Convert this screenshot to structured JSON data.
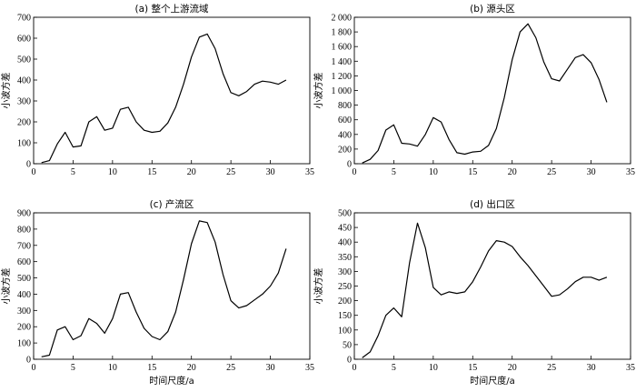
{
  "chart_data": [
    {
      "type": "line",
      "title": "(a) 整个上游流域",
      "xlabel": "",
      "ylabel": "小波方差",
      "xlim": [
        0,
        35
      ],
      "ylim": [
        0,
        700
      ],
      "xticks": [
        "0",
        "5",
        "10",
        "15",
        "20",
        "25",
        "30",
        "35"
      ],
      "yticks": [
        "0",
        "100",
        "200",
        "300",
        "400",
        "500",
        "600",
        "700"
      ],
      "x": [
        1,
        2,
        3,
        4,
        5,
        6,
        7,
        8,
        9,
        10,
        11,
        12,
        13,
        14,
        15,
        16,
        17,
        18,
        19,
        20,
        21,
        22,
        23,
        24,
        25,
        26,
        27,
        28,
        29,
        30,
        31,
        32
      ],
      "y": [
        5,
        15,
        95,
        150,
        80,
        85,
        200,
        225,
        160,
        170,
        260,
        270,
        200,
        160,
        150,
        155,
        195,
        270,
        380,
        510,
        605,
        620,
        550,
        430,
        340,
        325,
        345,
        380,
        395,
        390,
        380,
        400
      ]
    },
    {
      "type": "line",
      "title": "(b) 源头区",
      "xlabel": "",
      "ylabel": "小波方差",
      "xlim": [
        0,
        35
      ],
      "ylim": [
        0,
        2000
      ],
      "xticks": [
        "0",
        "5",
        "10",
        "15",
        "20",
        "25",
        "30",
        "35"
      ],
      "yticks": [
        "0",
        "200",
        "400",
        "600",
        "800",
        "1 000",
        "1 200",
        "1 400",
        "1 600",
        "1 800",
        "2 000"
      ],
      "x": [
        1,
        2,
        3,
        4,
        5,
        6,
        7,
        8,
        9,
        10,
        11,
        12,
        13,
        14,
        15,
        16,
        17,
        18,
        19,
        20,
        21,
        22,
        23,
        24,
        25,
        26,
        27,
        28,
        29,
        30,
        31,
        32
      ],
      "y": [
        10,
        60,
        180,
        460,
        530,
        280,
        270,
        240,
        400,
        630,
        570,
        330,
        150,
        130,
        160,
        170,
        250,
        480,
        900,
        1420,
        1800,
        1910,
        1720,
        1390,
        1160,
        1130,
        1290,
        1450,
        1490,
        1380,
        1150,
        840
      ]
    },
    {
      "type": "line",
      "title": "(c) 产流区",
      "xlabel": "时间尺度/a",
      "ylabel": "小波方差",
      "xlim": [
        0,
        35
      ],
      "ylim": [
        0,
        900
      ],
      "xticks": [
        "0",
        "5",
        "10",
        "15",
        "20",
        "25",
        "30",
        "35"
      ],
      "yticks": [
        "0",
        "100",
        "200",
        "300",
        "400",
        "500",
        "600",
        "700",
        "800",
        "900"
      ],
      "x": [
        1,
        2,
        3,
        4,
        5,
        6,
        7,
        8,
        9,
        10,
        11,
        12,
        13,
        14,
        15,
        16,
        17,
        18,
        19,
        20,
        21,
        22,
        23,
        24,
        25,
        26,
        27,
        28,
        29,
        30,
        31,
        32
      ],
      "y": [
        15,
        25,
        180,
        200,
        120,
        145,
        250,
        220,
        160,
        250,
        400,
        410,
        290,
        190,
        140,
        120,
        170,
        290,
        490,
        710,
        850,
        840,
        720,
        520,
        360,
        315,
        330,
        365,
        400,
        450,
        530,
        680
      ]
    },
    {
      "type": "line",
      "title": "(d) 出口区",
      "xlabel": "时间尺度/a",
      "ylabel": "小波方差",
      "xlim": [
        0,
        35
      ],
      "ylim": [
        0,
        500
      ],
      "xticks": [
        "0",
        "5",
        "10",
        "15",
        "20",
        "25",
        "30",
        "35"
      ],
      "yticks": [
        "0",
        "50",
        "100",
        "150",
        "200",
        "250",
        "300",
        "350",
        "400",
        "450",
        "500"
      ],
      "x": [
        1,
        2,
        3,
        4,
        5,
        6,
        7,
        8,
        9,
        10,
        11,
        12,
        13,
        14,
        15,
        16,
        17,
        18,
        19,
        20,
        21,
        22,
        23,
        24,
        25,
        26,
        27,
        28,
        29,
        30,
        31,
        32
      ],
      "y": [
        5,
        25,
        80,
        150,
        175,
        145,
        330,
        465,
        380,
        245,
        220,
        230,
        225,
        230,
        265,
        315,
        370,
        405,
        400,
        385,
        350,
        320,
        285,
        250,
        215,
        220,
        240,
        265,
        280,
        280,
        270,
        280
      ]
    }
  ]
}
